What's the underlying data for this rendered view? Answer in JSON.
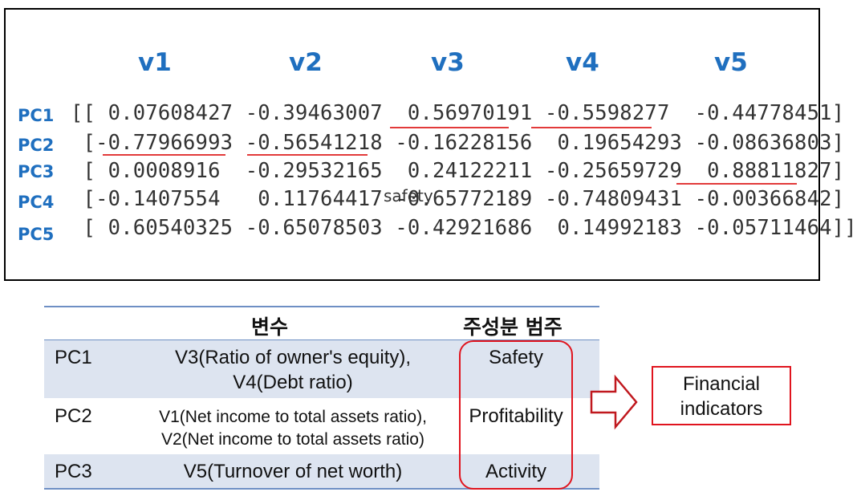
{
  "matrix": {
    "columns": [
      "v1",
      "v2",
      "v3",
      "v4",
      "v5"
    ],
    "rows": [
      {
        "label": "PC1",
        "text": "[[ 0.07608427 -0.39463007  0.56970191 -0.5598277  -0.44778451]"
      },
      {
        "label": "PC2",
        "text": " [-0.77966993 -0.56541218 -0.16228156  0.19654293 -0.08636803]"
      },
      {
        "label": "PC3",
        "text": " [ 0.0008916  -0.29532165  0.24122211 -0.25659729  0.88811827]"
      },
      {
        "label": "PC4",
        "text": " [-0.1407554   0.11764417 -0.65772189 -0.74809431 -0.00366842]"
      },
      {
        "label": "PC5",
        "text": " [ 0.60540325 -0.65078503 -0.42921686  0.14992183 -0.05711464]]"
      }
    ],
    "overlay": "safety",
    "highlight_color": "#e23a3a",
    "header_color": "#1f6fbf"
  },
  "table": {
    "header_variable": "변수",
    "header_category": "주성분 범주",
    "rows": [
      {
        "pc": "PC1",
        "var_line1": "V3(Ratio of owner's equity),",
        "var_line2": "V4(Debt ratio)",
        "category": "Safety"
      },
      {
        "pc": "PC2",
        "var_line1": "V1(Net income to total assets ratio),",
        "var_line2": "V2(Net income to total assets ratio)",
        "category": "Profitability"
      },
      {
        "pc": "PC3",
        "var_line1": "V5(Turnover of net worth)",
        "var_line2": "",
        "category": "Activity"
      }
    ],
    "shade_color": "#dde4f0",
    "line_color": "#6e8fc4"
  },
  "result": {
    "line1": "Financial",
    "line2": "indicators",
    "border_color": "#e0141e"
  }
}
